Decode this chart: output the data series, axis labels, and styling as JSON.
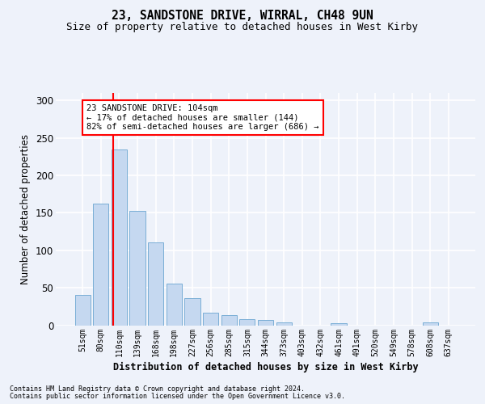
{
  "title1": "23, SANDSTONE DRIVE, WIRRAL, CH48 9UN",
  "title2": "Size of property relative to detached houses in West Kirby",
  "xlabel": "Distribution of detached houses by size in West Kirby",
  "ylabel": "Number of detached properties",
  "categories": [
    "51sqm",
    "80sqm",
    "110sqm",
    "139sqm",
    "168sqm",
    "198sqm",
    "227sqm",
    "256sqm",
    "285sqm",
    "315sqm",
    "344sqm",
    "373sqm",
    "403sqm",
    "432sqm",
    "461sqm",
    "491sqm",
    "520sqm",
    "549sqm",
    "578sqm",
    "608sqm",
    "637sqm"
  ],
  "values": [
    40,
    162,
    235,
    153,
    110,
    55,
    36,
    17,
    14,
    8,
    7,
    4,
    0,
    0,
    3,
    0,
    0,
    0,
    0,
    4,
    0
  ],
  "bar_color": "#c5d8f0",
  "bar_edge_color": "#7aaed6",
  "red_line_x": 1.67,
  "annotation_text": "23 SANDSTONE DRIVE: 104sqm\n← 17% of detached houses are smaller (144)\n82% of semi-detached houses are larger (686) →",
  "annotation_box_color": "white",
  "annotation_box_edge": "red",
  "ylim": [
    0,
    310
  ],
  "yticks": [
    0,
    50,
    100,
    150,
    200,
    250,
    300
  ],
  "footer1": "Contains HM Land Registry data © Crown copyright and database right 2024.",
  "footer2": "Contains public sector information licensed under the Open Government Licence v3.0.",
  "bg_color": "#eef2fa",
  "plot_bg_color": "#eef2fa",
  "grid_color": "#ffffff"
}
